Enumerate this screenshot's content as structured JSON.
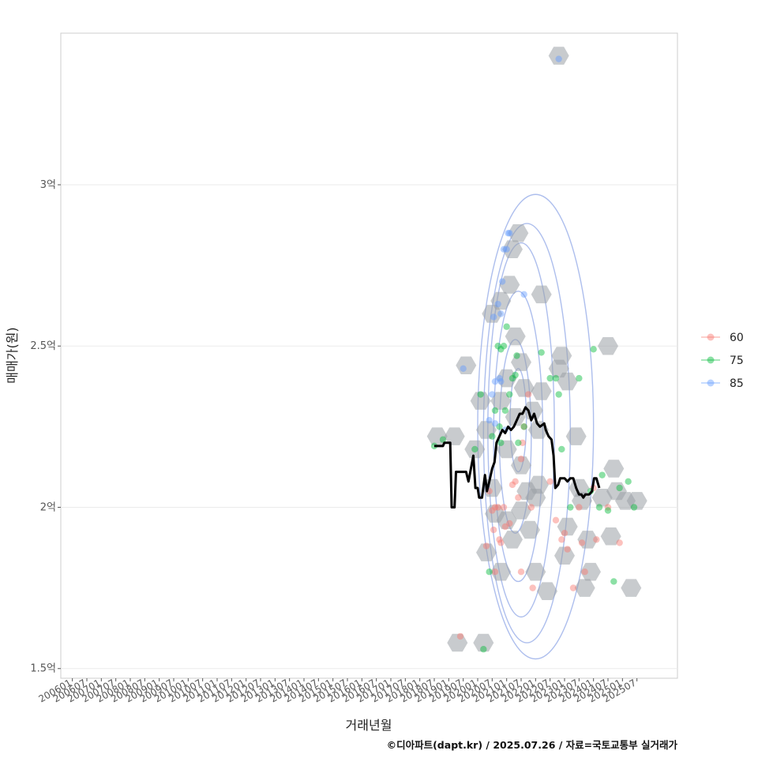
{
  "chart_data": {
    "type": "scatter",
    "xlabel": "거래년월",
    "ylabel": "매매가(원)",
    "caption": "©디아파트(dapt.kr) / 2025.07.26 / 자료=국토교통부 실거래가",
    "xlim": [
      2005.6,
      2026.9
    ],
    "ylim": [
      1.47,
      3.47
    ],
    "x_ticks": [
      {
        "value": 2006.0,
        "label": "200601"
      },
      {
        "value": 2006.5,
        "label": "200607"
      },
      {
        "value": 2007.0,
        "label": "200701"
      },
      {
        "value": 2007.5,
        "label": "200707"
      },
      {
        "value": 2008.0,
        "label": "200801"
      },
      {
        "value": 2008.5,
        "label": "200807"
      },
      {
        "value": 2009.0,
        "label": "200901"
      },
      {
        "value": 2009.5,
        "label": "200907"
      },
      {
        "value": 2010.0,
        "label": "201001"
      },
      {
        "value": 2010.5,
        "label": "201007"
      },
      {
        "value": 2011.0,
        "label": "201101"
      },
      {
        "value": 2011.5,
        "label": "201107"
      },
      {
        "value": 2012.0,
        "label": "201201"
      },
      {
        "value": 2012.5,
        "label": "201207"
      },
      {
        "value": 2013.0,
        "label": "201301"
      },
      {
        "value": 2013.5,
        "label": "201307"
      },
      {
        "value": 2014.0,
        "label": "201401"
      },
      {
        "value": 2014.5,
        "label": "201407"
      },
      {
        "value": 2015.0,
        "label": "201501"
      },
      {
        "value": 2015.5,
        "label": "201507"
      },
      {
        "value": 2016.0,
        "label": "201601"
      },
      {
        "value": 2016.5,
        "label": "201607"
      },
      {
        "value": 2017.0,
        "label": "201701"
      },
      {
        "value": 2017.5,
        "label": "201707"
      },
      {
        "value": 2018.0,
        "label": "201801"
      },
      {
        "value": 2018.5,
        "label": "201807"
      },
      {
        "value": 2019.0,
        "label": "201901"
      },
      {
        "value": 2019.5,
        "label": "201907"
      },
      {
        "value": 2020.0,
        "label": "202001"
      },
      {
        "value": 2020.5,
        "label": "202007"
      },
      {
        "value": 2021.0,
        "label": "202101"
      },
      {
        "value": 2021.5,
        "label": "202107"
      },
      {
        "value": 2022.0,
        "label": "202201"
      },
      {
        "value": 2022.5,
        "label": "202207"
      },
      {
        "value": 2023.0,
        "label": "202301"
      },
      {
        "value": 2023.5,
        "label": "202307"
      },
      {
        "value": 2024.0,
        "label": "202401"
      },
      {
        "value": 2024.5,
        "label": "202407"
      },
      {
        "value": 2025.0,
        "label": "202501"
      },
      {
        "value": 2025.5,
        "label": "202507"
      }
    ],
    "y_ticks": [
      {
        "value": 1.5,
        "label": "1.5억"
      },
      {
        "value": 2.0,
        "label": "2억"
      },
      {
        "value": 2.5,
        "label": "2.5억"
      },
      {
        "value": 3.0,
        "label": "3억"
      }
    ],
    "legend": {
      "position": "right",
      "entries": [
        {
          "name": "60",
          "color": "#F8766D"
        },
        {
          "name": "75",
          "color": "#00BA38"
        },
        {
          "name": "85",
          "color": "#619CFF"
        }
      ]
    },
    "colors": {
      "hex_fill": "#9aa0a6",
      "contour": "#9fb3ea",
      "trend": "#000000",
      "grid": "#ebebeb",
      "frame": "#cccccc"
    },
    "hexbins": [
      [
        2018.6,
        2.22
      ],
      [
        2019.2,
        2.22
      ],
      [
        2019.6,
        2.44
      ],
      [
        2019.9,
        2.18
      ],
      [
        2020.1,
        2.33
      ],
      [
        2020.3,
        2.24
      ],
      [
        2020.5,
        2.06
      ],
      [
        2020.3,
        1.86
      ],
      [
        2020.6,
        1.98
      ],
      [
        2020.8,
        1.8
      ],
      [
        2020.5,
        2.6
      ],
      [
        2020.8,
        2.64
      ],
      [
        2020.8,
        2.33
      ],
      [
        2021.0,
        2.4
      ],
      [
        2021.0,
        2.18
      ],
      [
        2021.1,
        2.69
      ],
      [
        2021.2,
        2.8
      ],
      [
        2021.4,
        2.85
      ],
      [
        2021.3,
        2.53
      ],
      [
        2021.5,
        2.45
      ],
      [
        2021.3,
        2.28
      ],
      [
        2021.6,
        2.37
      ],
      [
        2021.5,
        2.13
      ],
      [
        2021.7,
        2.05
      ],
      [
        2021.0,
        1.96
      ],
      [
        2021.2,
        1.9
      ],
      [
        2021.5,
        1.99
      ],
      [
        2021.8,
        1.93
      ],
      [
        2022.0,
        2.03
      ],
      [
        2022.1,
        2.07
      ],
      [
        2022.1,
        2.24
      ],
      [
        2022.2,
        2.66
      ],
      [
        2021.9,
        2.3
      ],
      [
        2022.2,
        2.36
      ],
      [
        2022.0,
        1.8
      ],
      [
        2022.4,
        1.74
      ],
      [
        2022.8,
        3.4
      ],
      [
        2022.8,
        2.43
      ],
      [
        2022.9,
        2.47
      ],
      [
        2023.1,
        2.39
      ],
      [
        2023.1,
        1.94
      ],
      [
        2023.0,
        1.85
      ],
      [
        2023.4,
        2.22
      ],
      [
        2023.5,
        2.06
      ],
      [
        2023.6,
        2.02
      ],
      [
        2023.8,
        1.9
      ],
      [
        2023.7,
        1.75
      ],
      [
        2023.9,
        1.8
      ],
      [
        2024.3,
        2.03
      ],
      [
        2024.5,
        2.5
      ],
      [
        2024.7,
        2.12
      ],
      [
        2024.6,
        1.91
      ],
      [
        2024.8,
        2.05
      ],
      [
        2025.1,
        2.02
      ],
      [
        2025.3,
        1.75
      ],
      [
        2025.5,
        2.02
      ],
      [
        2019.3,
        1.58
      ],
      [
        2020.2,
        1.58
      ]
    ],
    "series": [
      {
        "name": "60",
        "color": "#F8766D",
        "points": [
          [
            2019.4,
            1.6
          ],
          [
            2020.3,
            1.88
          ],
          [
            2020.4,
            2.05
          ],
          [
            2020.5,
            1.99
          ],
          [
            2020.55,
            1.93
          ],
          [
            2020.6,
            2.0
          ],
          [
            2020.7,
            2.0
          ],
          [
            2020.75,
            1.9
          ],
          [
            2020.8,
            1.89
          ],
          [
            2020.9,
            2.0
          ],
          [
            2020.95,
            1.94
          ],
          [
            2021.1,
            1.95
          ],
          [
            2021.2,
            2.07
          ],
          [
            2021.3,
            2.08
          ],
          [
            2021.4,
            2.03
          ],
          [
            2021.5,
            2.15
          ],
          [
            2021.55,
            2.2
          ],
          [
            2021.6,
            2.25
          ],
          [
            2021.75,
            2.35
          ],
          [
            2021.85,
            2.0
          ],
          [
            2021.5,
            1.8
          ],
          [
            2021.9,
            1.75
          ],
          [
            2022.5,
            2.08
          ],
          [
            2022.7,
            1.96
          ],
          [
            2022.9,
            1.9
          ],
          [
            2023.0,
            1.92
          ],
          [
            2023.1,
            1.87
          ],
          [
            2023.3,
            1.75
          ],
          [
            2023.5,
            2.0
          ],
          [
            2023.6,
            1.89
          ],
          [
            2023.7,
            1.8
          ],
          [
            2024.0,
            2.06
          ],
          [
            2024.5,
            2.0
          ],
          [
            2024.9,
            1.89
          ],
          [
            2020.6,
            1.8
          ],
          [
            2024.1,
            1.9
          ]
        ]
      },
      {
        "name": "75",
        "color": "#00BA38",
        "points": [
          [
            2018.5,
            2.19
          ],
          [
            2018.8,
            2.21
          ],
          [
            2019.9,
            2.18
          ],
          [
            2020.1,
            2.35
          ],
          [
            2020.2,
            1.56
          ],
          [
            2020.5,
            2.22
          ],
          [
            2020.6,
            2.3
          ],
          [
            2020.7,
            2.5
          ],
          [
            2020.75,
            2.25
          ],
          [
            2020.8,
            2.2
          ],
          [
            2020.9,
            2.5
          ],
          [
            2020.95,
            2.3
          ],
          [
            2021.0,
            2.56
          ],
          [
            2021.1,
            2.35
          ],
          [
            2021.2,
            2.4
          ],
          [
            2021.3,
            2.41
          ],
          [
            2021.35,
            2.47
          ],
          [
            2021.4,
            2.2
          ],
          [
            2021.6,
            2.25
          ],
          [
            2022.2,
            2.48
          ],
          [
            2022.5,
            2.4
          ],
          [
            2022.7,
            2.4
          ],
          [
            2022.8,
            2.35
          ],
          [
            2022.9,
            2.18
          ],
          [
            2023.2,
            2.0
          ],
          [
            2023.5,
            2.4
          ],
          [
            2023.9,
            2.05
          ],
          [
            2024.0,
            2.49
          ],
          [
            2024.2,
            2.0
          ],
          [
            2024.3,
            2.1
          ],
          [
            2024.5,
            1.99
          ],
          [
            2024.7,
            1.77
          ],
          [
            2024.9,
            2.06
          ],
          [
            2025.2,
            2.08
          ],
          [
            2025.4,
            2.0
          ],
          [
            2020.4,
            1.8
          ],
          [
            2020.8,
            2.49
          ]
        ]
      },
      {
        "name": "85",
        "color": "#619CFF",
        "points": [
          [
            2019.5,
            2.43
          ],
          [
            2020.4,
            2.27
          ],
          [
            2020.5,
            2.35
          ],
          [
            2020.55,
            2.59
          ],
          [
            2020.6,
            2.39
          ],
          [
            2020.7,
            2.63
          ],
          [
            2020.75,
            2.4
          ],
          [
            2020.8,
            2.6
          ],
          [
            2020.85,
            2.7
          ],
          [
            2020.9,
            2.8
          ],
          [
            2021.0,
            2.8
          ],
          [
            2021.05,
            2.85
          ],
          [
            2021.1,
            2.85
          ],
          [
            2021.6,
            2.66
          ],
          [
            2022.8,
            3.39
          ],
          [
            2020.6,
            2.26
          ],
          [
            2020.8,
            2.39
          ],
          [
            2020.95,
            2.24
          ]
        ]
      }
    ],
    "trend": [
      [
        2018.5,
        2.19
      ],
      [
        2018.8,
        2.19
      ],
      [
        2018.85,
        2.2
      ],
      [
        2019.05,
        2.2
      ],
      [
        2019.1,
        2.0
      ],
      [
        2019.2,
        2.0
      ],
      [
        2019.25,
        2.11
      ],
      [
        2019.6,
        2.11
      ],
      [
        2019.68,
        2.08
      ],
      [
        2019.85,
        2.16
      ],
      [
        2019.92,
        2.06
      ],
      [
        2020.0,
        2.06
      ],
      [
        2020.05,
        2.03
      ],
      [
        2020.15,
        2.03
      ],
      [
        2020.25,
        2.1
      ],
      [
        2020.32,
        2.05
      ],
      [
        2020.4,
        2.08
      ],
      [
        2020.5,
        2.12
      ],
      [
        2020.58,
        2.14
      ],
      [
        2020.65,
        2.2
      ],
      [
        2020.75,
        2.22
      ],
      [
        2020.85,
        2.24
      ],
      [
        2020.95,
        2.23
      ],
      [
        2021.05,
        2.25
      ],
      [
        2021.15,
        2.24
      ],
      [
        2021.25,
        2.25
      ],
      [
        2021.35,
        2.27
      ],
      [
        2021.45,
        2.29
      ],
      [
        2021.55,
        2.29
      ],
      [
        2021.65,
        2.31
      ],
      [
        2021.75,
        2.3
      ],
      [
        2021.85,
        2.27
      ],
      [
        2021.95,
        2.29
      ],
      [
        2022.05,
        2.26
      ],
      [
        2022.15,
        2.25
      ],
      [
        2022.3,
        2.26
      ],
      [
        2022.35,
        2.24
      ],
      [
        2022.45,
        2.22
      ],
      [
        2022.55,
        2.21
      ],
      [
        2022.62,
        2.16
      ],
      [
        2022.68,
        2.06
      ],
      [
        2022.78,
        2.07
      ],
      [
        2022.85,
        2.09
      ],
      [
        2023.0,
        2.09
      ],
      [
        2023.1,
        2.08
      ],
      [
        2023.2,
        2.09
      ],
      [
        2023.3,
        2.09
      ],
      [
        2023.4,
        2.06
      ],
      [
        2023.5,
        2.04
      ],
      [
        2023.58,
        2.04
      ],
      [
        2023.65,
        2.03
      ],
      [
        2023.72,
        2.04
      ],
      [
        2023.85,
        2.04
      ],
      [
        2023.95,
        2.05
      ],
      [
        2024.02,
        2.09
      ],
      [
        2024.1,
        2.09
      ],
      [
        2024.2,
        2.06
      ]
    ],
    "contours": [
      {
        "cx": 2021.4,
        "cy": 2.27,
        "rx": 0.28,
        "ry": 0.16
      },
      {
        "cx": 2021.3,
        "cy": 2.22,
        "rx": 0.55,
        "ry": 0.3
      },
      {
        "cx": 2021.4,
        "cy": 2.22,
        "rx": 0.85,
        "ry": 0.45
      },
      {
        "cx": 2021.5,
        "cy": 2.24,
        "rx": 1.15,
        "ry": 0.58
      },
      {
        "cx": 2021.7,
        "cy": 2.23,
        "rx": 1.5,
        "ry": 0.65
      },
      {
        "cx": 2022.0,
        "cy": 2.25,
        "rx": 2.0,
        "ry": 0.72
      }
    ]
  }
}
